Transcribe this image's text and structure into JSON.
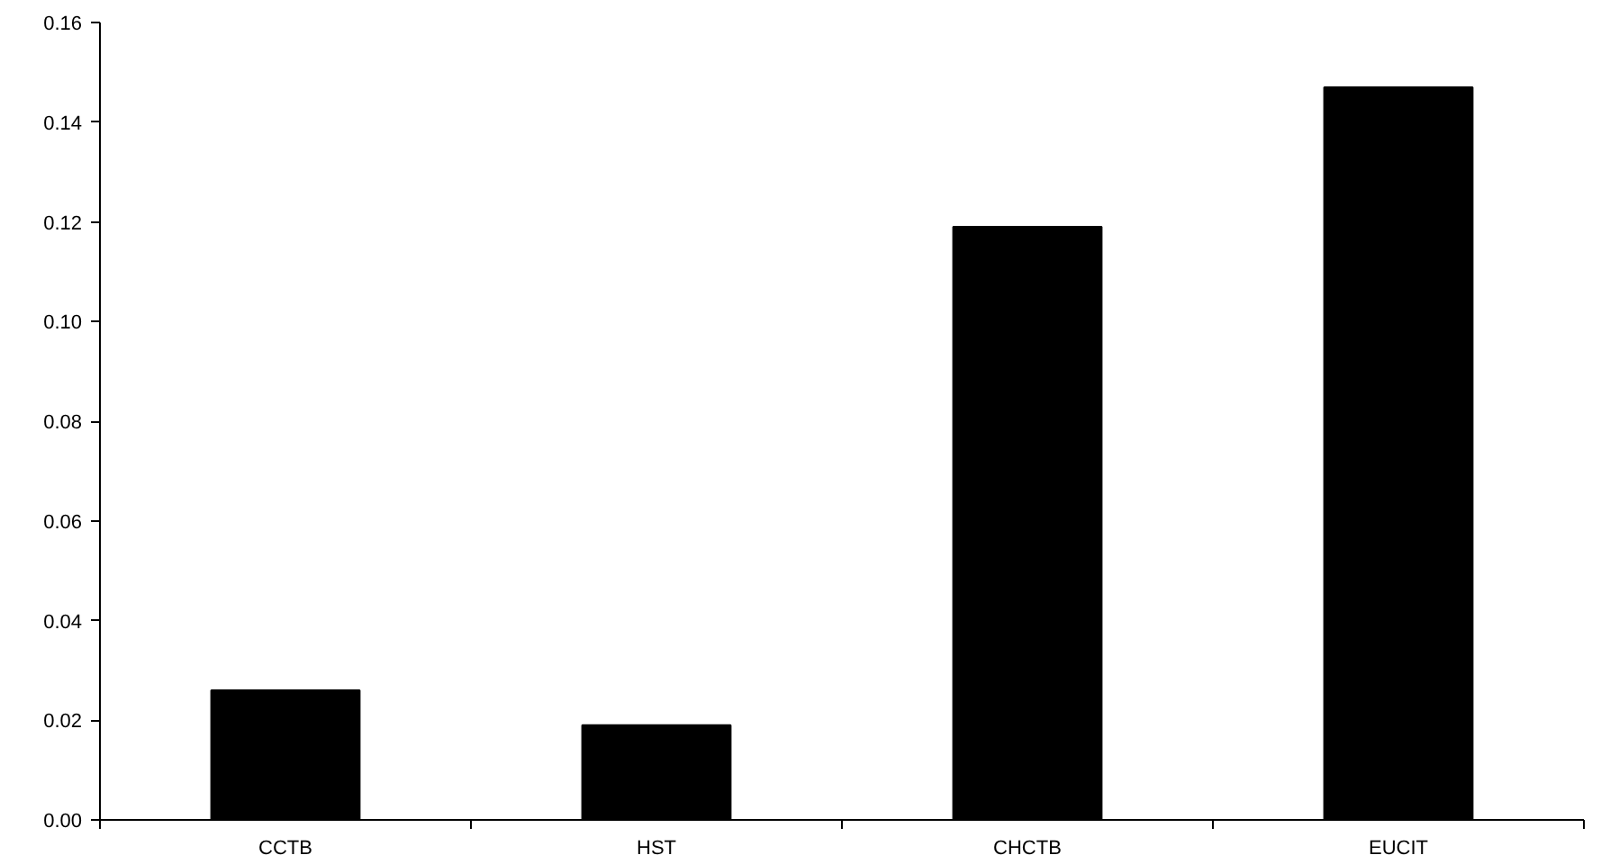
{
  "chart_data": {
    "type": "bar",
    "categories": [
      "CCTB",
      "HST",
      "CHCTB",
      "EUCIT"
    ],
    "values": [
      0.026,
      0.019,
      0.119,
      0.147
    ],
    "color": "#000000",
    "ylim": [
      0,
      0.16
    ],
    "yticks": [
      {
        "value": 0,
        "label": "0.00"
      },
      {
        "value": 0.02,
        "label": "0.02"
      },
      {
        "value": 0.04,
        "label": "0.04"
      },
      {
        "value": 0.06,
        "label": "0.06"
      },
      {
        "value": 0.08,
        "label": "0.08"
      },
      {
        "value": 0.1,
        "label": "0.10"
      },
      {
        "value": 0.12,
        "label": "0.12"
      },
      {
        "value": 0.14,
        "label": "0.14"
      },
      {
        "value": 0.16,
        "label": "0.16"
      }
    ]
  }
}
